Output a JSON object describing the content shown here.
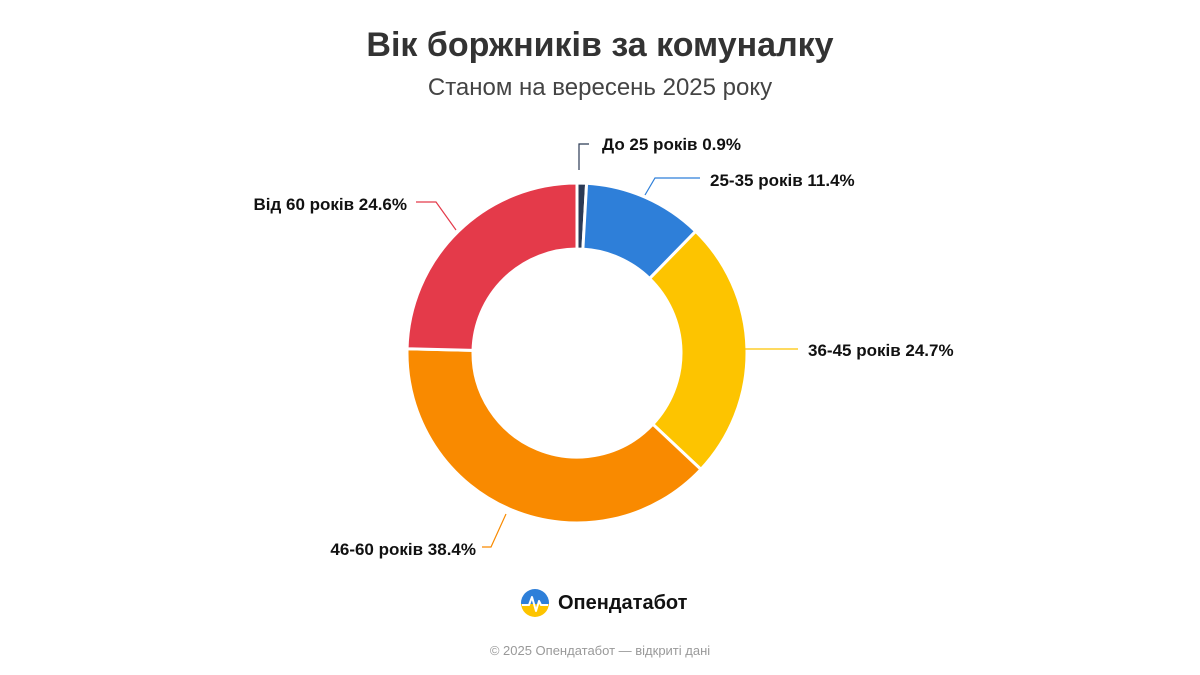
{
  "header": {
    "title": "Вік боржників за комуналку",
    "subtitle": "Станом на вересень 2025 року"
  },
  "chart_data": {
    "type": "pie",
    "variant": "donut",
    "title": "Вік боржників за комуналку",
    "subtitle": "Станом на вересень 2025 року",
    "unit": "%",
    "categories": [
      "До 25 років",
      "25-35 років",
      "36-45 років",
      "46-60 років",
      "Від 60 років"
    ],
    "values": [
      0.9,
      11.4,
      24.7,
      38.4,
      24.6
    ],
    "colors": [
      "#2b3a55",
      "#2e7fd9",
      "#fdc400",
      "#f98a00",
      "#e43a4a"
    ],
    "labels": [
      "До 25 років 0.9%",
      "25-35 років 11.4%",
      "36-45 років 24.7%",
      "46-60 років 38.4%",
      "Від 60 років 24.6%"
    ],
    "start_angle": "12 o'clock",
    "direction": "clockwise",
    "legend": "none"
  },
  "brand": {
    "name": "Опендатабот",
    "logo_icon": "opendatabot-logo-icon",
    "logo_colors": [
      "#2e7fd9",
      "#fdc400"
    ]
  },
  "footer": {
    "text": "© 2025 Опендатабот — відкриті дані"
  }
}
